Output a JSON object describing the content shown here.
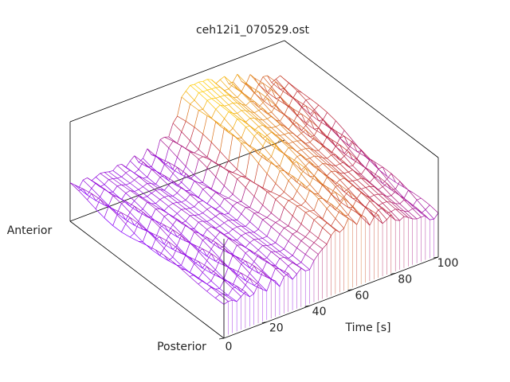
{
  "chart_data": {
    "type": "surface",
    "title": "ceh12i1_070529.ost",
    "xlabel": "Time [s]",
    "x_range": [
      0,
      100
    ],
    "x_ticks": [
      0,
      20,
      40,
      60,
      80,
      100
    ],
    "y_labels": {
      "near": "Posterior",
      "far": "Anterior"
    },
    "z_range": [
      0,
      1
    ],
    "grid": false,
    "colors": {
      "low": "#8800ff",
      "mid": "#bb2233",
      "high": "#ffcc00"
    },
    "step_at_time": 50,
    "surface_levels_by_time": {
      "time": [
        0,
        20,
        40,
        50,
        60,
        80,
        100
      ],
      "level": [
        0.34,
        0.36,
        0.38,
        0.62,
        0.7,
        0.55,
        0.4
      ]
    }
  }
}
